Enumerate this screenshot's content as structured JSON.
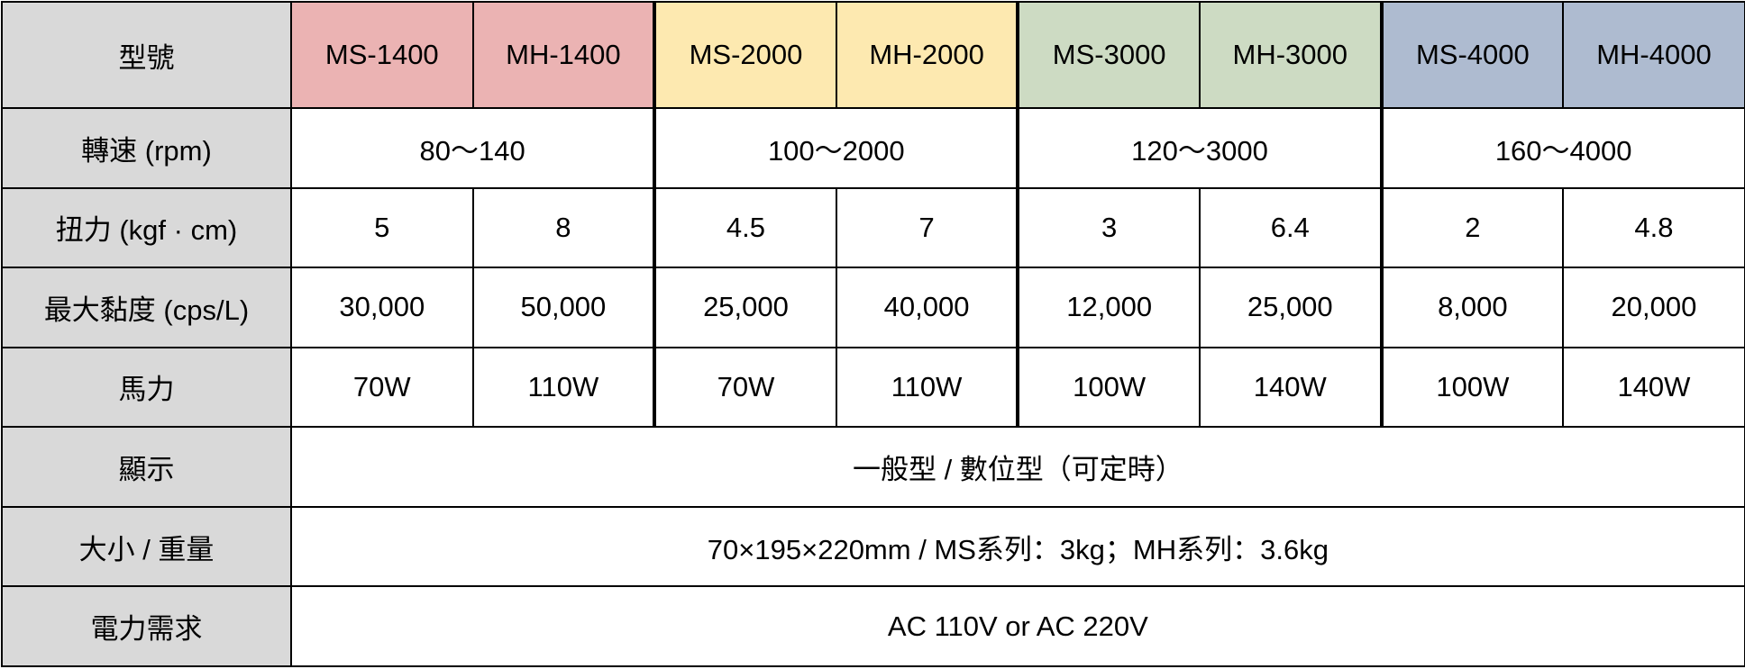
{
  "table": {
    "header": {
      "label": "型號",
      "models": [
        "MS-1400",
        "MH-1400",
        "MS-2000",
        "MH-2000",
        "MS-3000",
        "MH-3000",
        "MS-4000",
        "MH-4000"
      ]
    },
    "rows": [
      {
        "label": "轉速 (rpm)",
        "cells": [
          "80～140",
          "100～2000",
          "120～3000",
          "160～4000"
        ]
      },
      {
        "label": "扭力 (kgf · cm)",
        "cells": [
          "5",
          "8",
          "4.5",
          "7",
          "3",
          "6.4",
          "2",
          "4.8"
        ]
      },
      {
        "label": "最大黏度 (cps/L)",
        "cells": [
          "30,000",
          "50,000",
          "25,000",
          "40,000",
          "12,000",
          "25,000",
          "8,000",
          "20,000"
        ]
      },
      {
        "label": "馬力",
        "cells": [
          "70W",
          "110W",
          "70W",
          "110W",
          "100W",
          "140W",
          "100W",
          "140W"
        ]
      },
      {
        "label": "顯示",
        "cells": [
          "一般型 / 數位型（可定時）"
        ]
      },
      {
        "label": "大小 / 重量",
        "cells": [
          "70×195×220mm / MS系列：3kg；MH系列：3.6kg"
        ]
      },
      {
        "label": "電力需求",
        "cells": [
          "AC 110V or  AC 220V"
        ]
      }
    ]
  }
}
